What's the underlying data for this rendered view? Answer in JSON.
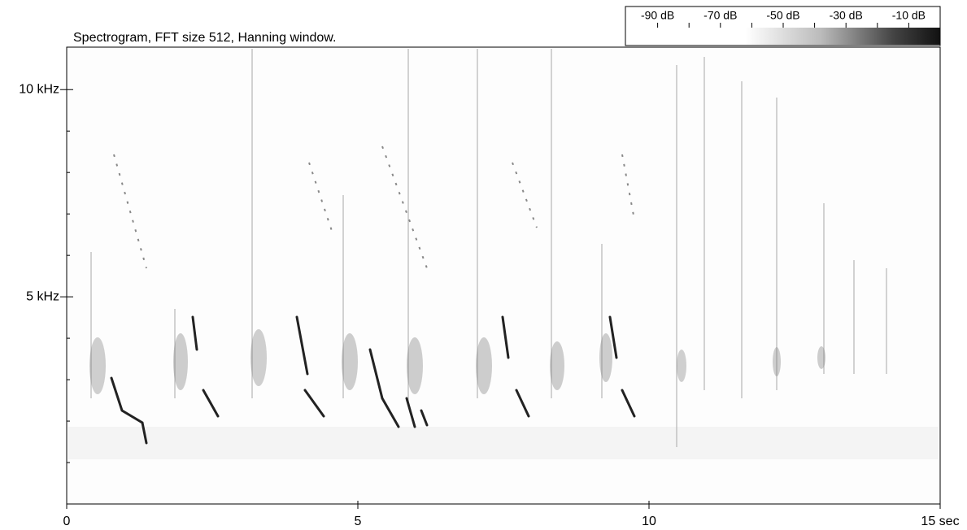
{
  "chart_data": {
    "type": "spectrogram",
    "title": "Spectrogram, FFT size 512, Hanning window.",
    "xlim": [
      0,
      15
    ],
    "xticks": [
      0,
      5,
      10,
      {
        "value": 15,
        "label": "15 sec"
      }
    ],
    "ylim": [
      0,
      11.025
    ],
    "yticks": [
      {
        "value": 5,
        "label": "5 kHz"
      },
      {
        "value": 10,
        "label": "10 kHz"
      }
    ],
    "yminorticks": [
      1,
      2,
      3,
      4,
      6,
      7,
      8,
      9
    ],
    "colorbar": {
      "lim": [
        -100,
        0
      ],
      "ticks": [
        {
          "value": -90,
          "label": "-90 dB"
        },
        {
          "value": -70,
          "label": "-70 dB"
        },
        {
          "value": -50,
          "label": "-50 dB"
        },
        {
          "value": -30,
          "label": "-30 dB"
        },
        {
          "value": -10,
          "label": "-10 dB"
        }
      ],
      "minorticks": [
        -80,
        -60,
        -40,
        -20
      ]
    }
  }
}
